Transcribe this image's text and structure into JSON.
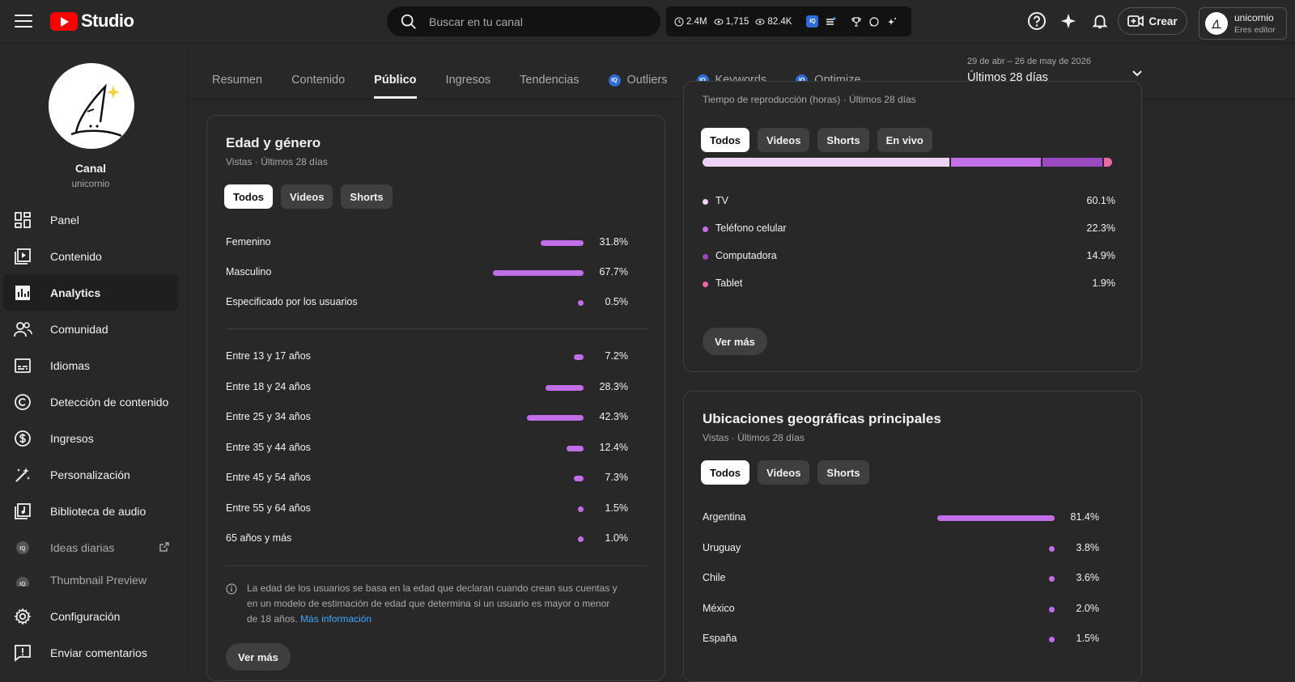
{
  "app": {
    "logo_text": "Studio"
  },
  "search": {
    "placeholder": "Buscar en tu canal"
  },
  "stats": {
    "subs": "2.4M",
    "views1": "1,715",
    "views2": "82.4K",
    "iq": "IQ"
  },
  "header": {
    "create_label": "Crear",
    "account_name": "unicornio",
    "account_role": "Eres editor"
  },
  "channel": {
    "title": "Canal",
    "handle": "unicornio"
  },
  "sidebar": {
    "items": [
      {
        "label": "Panel"
      },
      {
        "label": "Contenido"
      },
      {
        "label": "Analytics"
      },
      {
        "label": "Comunidad"
      },
      {
        "label": "Idiomas"
      },
      {
        "label": "Detección de contenido"
      },
      {
        "label": "Ingresos"
      },
      {
        "label": "Personalización"
      },
      {
        "label": "Biblioteca de audio"
      },
      {
        "label": "Ideas diarias"
      },
      {
        "label": "Thumbnail Preview"
      }
    ],
    "bottom": [
      {
        "label": "Configuración"
      },
      {
        "label": "Enviar comentarios"
      }
    ]
  },
  "tabs": [
    {
      "label": "Resumen"
    },
    {
      "label": "Contenido"
    },
    {
      "label": "Público"
    },
    {
      "label": "Ingresos"
    },
    {
      "label": "Tendencias"
    },
    {
      "label": "Outliers"
    },
    {
      "label": "Keywords"
    },
    {
      "label": "Optimize"
    }
  ],
  "date": {
    "range": "29 de abr – 26 de may de 2026",
    "label": "Últimos 28 días"
  },
  "age_gender": {
    "title": "Edad y género",
    "subtitle": "Vistas · Últimos 28 días",
    "chips": [
      "Todos",
      "Videos",
      "Shorts"
    ],
    "gender": [
      {
        "label": "Femenino",
        "value": 31.8,
        "pct": "31.8%"
      },
      {
        "label": "Masculino",
        "value": 67.7,
        "pct": "67.7%"
      },
      {
        "label": "Especificado por los usuarios",
        "value": 0.5,
        "pct": "0.5%"
      }
    ],
    "age": [
      {
        "label": "Entre 13 y 17 años",
        "value": 7.2,
        "pct": "7.2%"
      },
      {
        "label": "Entre 18 y 24 años",
        "value": 28.3,
        "pct": "28.3%"
      },
      {
        "label": "Entre 25 y 34 años",
        "value": 42.3,
        "pct": "42.3%"
      },
      {
        "label": "Entre 35 y 44 años",
        "value": 12.4,
        "pct": "12.4%"
      },
      {
        "label": "Entre 45 y 54 años",
        "value": 7.3,
        "pct": "7.3%"
      },
      {
        "label": "Entre 55 y 64 años",
        "value": 1.5,
        "pct": "1.5%"
      },
      {
        "label": "65 años y más",
        "value": 1.0,
        "pct": "1.0%"
      }
    ],
    "info_text": "La edad de los usuarios se basa en la edad que declaran cuando crean sus cuentas y en un modelo de estimación de edad que determina si un usuario es mayor o menor de 18 años.",
    "info_link": "Más información",
    "more": "Ver más"
  },
  "devices": {
    "subtitle": "Tiempo de reproducción (horas) · Últimos 28 días",
    "chips": [
      "Todos",
      "Videos",
      "Shorts",
      "En vivo"
    ],
    "items": [
      {
        "label": "TV",
        "value": 60.1,
        "pct": "60.1%",
        "color": "#ecd3f5"
      },
      {
        "label": "Teléfono celular",
        "value": 22.3,
        "pct": "22.3%",
        "color": "#c16ee8"
      },
      {
        "label": "Computadora",
        "value": 14.9,
        "pct": "14.9%",
        "color": "#9a4bc4"
      },
      {
        "label": "Tablet",
        "value": 1.9,
        "pct": "1.9%",
        "color": "#e86aa8"
      }
    ],
    "more": "Ver más"
  },
  "geo": {
    "title": "Ubicaciones geográficas principales",
    "subtitle": "Vistas · Últimos 28 días",
    "chips": [
      "Todos",
      "Videos",
      "Shorts"
    ],
    "items": [
      {
        "label": "Argentina",
        "value": 81.4,
        "pct": "81.4%"
      },
      {
        "label": "Uruguay",
        "value": 3.8,
        "pct": "3.8%"
      },
      {
        "label": "Chile",
        "value": 3.6,
        "pct": "3.6%"
      },
      {
        "label": "México",
        "value": 2.0,
        "pct": "2.0%"
      },
      {
        "label": "España",
        "value": 1.5,
        "pct": "1.5%"
      }
    ]
  }
}
